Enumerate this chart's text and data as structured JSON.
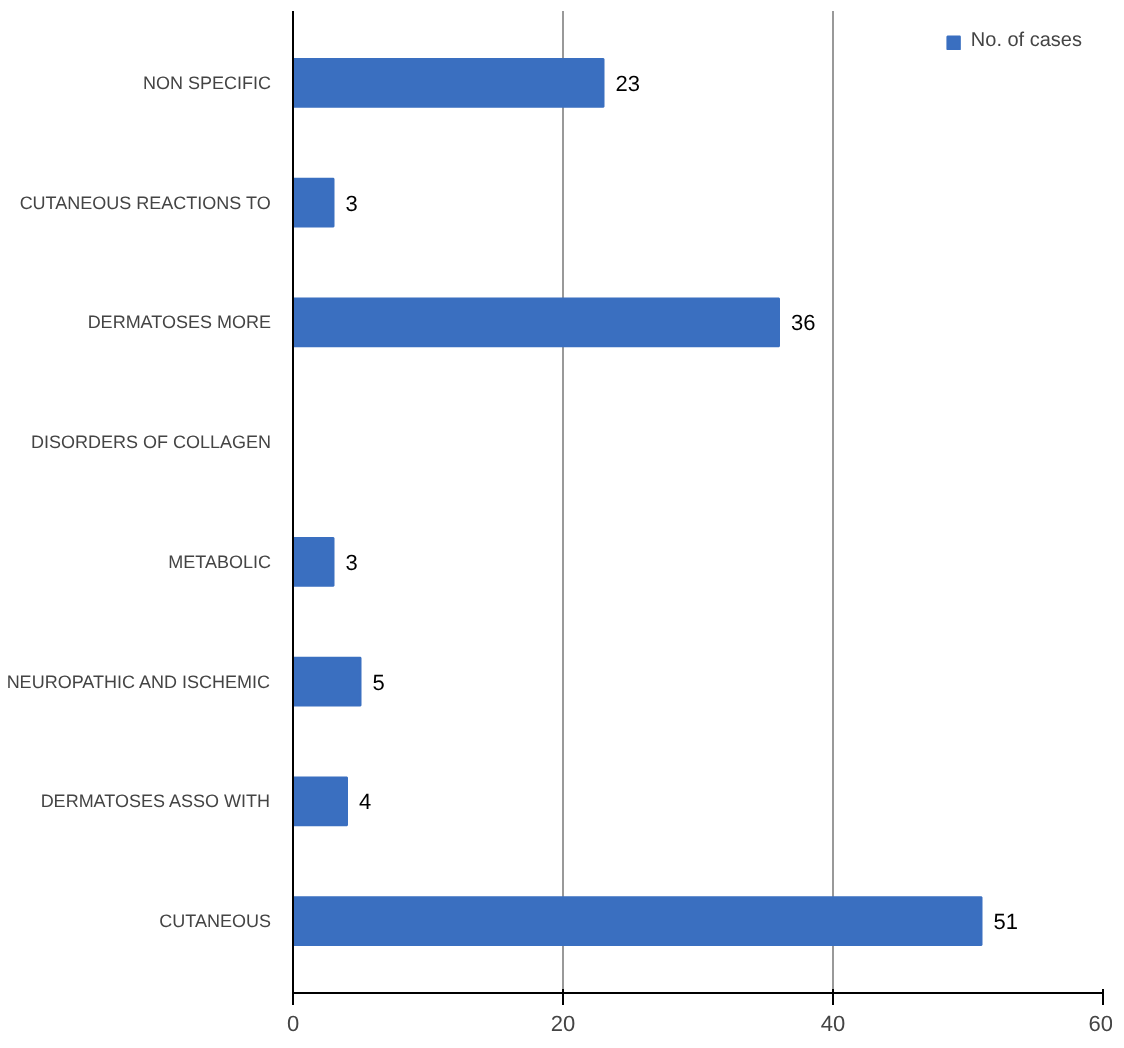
{
  "chart_data": {
    "type": "bar",
    "orientation": "horizontal",
    "categories": [
      "NON SPECIFIC",
      "CUTANEOUS REACTIONS TO",
      "DERMATOSES MORE",
      "DISORDERS OF COLLAGEN",
      "METABOLIC",
      "NEUROPATHIC AND ISCHEMIC",
      "DERMATOSES ASSO WITH",
      "CUTANEOUS"
    ],
    "series": [
      {
        "name": "No. of cases",
        "color": "#3a6fc0",
        "values": [
          23,
          3,
          36,
          null,
          3,
          5,
          4,
          51
        ]
      }
    ],
    "xlim": [
      0,
      60
    ],
    "xticks": [
      0,
      20,
      40,
      60
    ],
    "grid": "x",
    "legend": "top right",
    "data_labels": true
  }
}
